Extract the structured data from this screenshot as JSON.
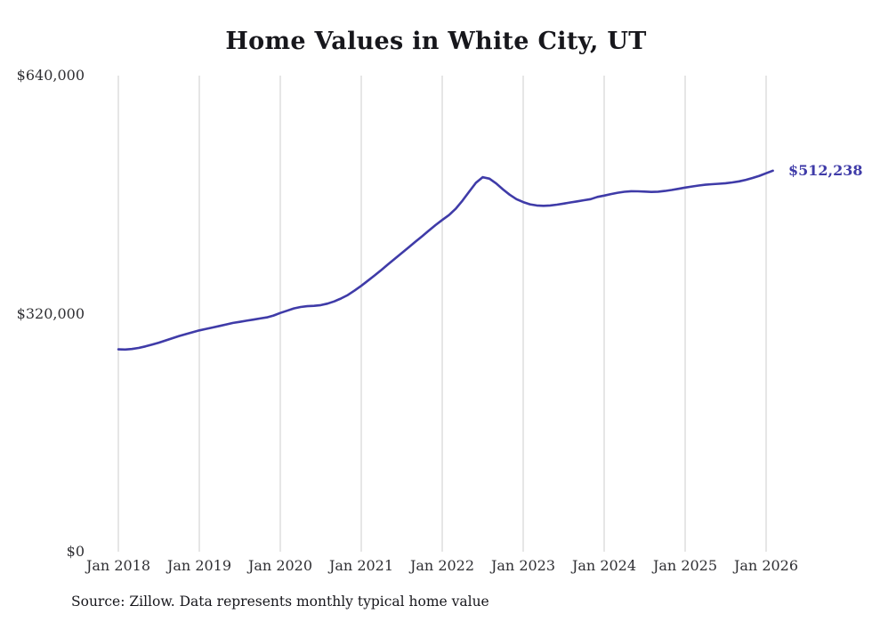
{
  "title": "Home Values in White City, UT",
  "source_note": "Source: Zillow. Data represents monthly typical home value",
  "end_label": "$512,238",
  "colors": {
    "line": "#3f3ba8",
    "grid": "#cccccc",
    "title_text": "#17171c",
    "axis_text": "#2f2f33"
  },
  "chart_data": {
    "type": "line",
    "title": "Home Values in White City, UT",
    "xlabel": "",
    "ylabel": "",
    "x_unit": "month",
    "x_start": "2018-01",
    "x_end": "2026-02",
    "x_tick_labels": [
      "Jan 2018",
      "Jan 2019",
      "Jan 2020",
      "Jan 2021",
      "Jan 2022",
      "Jan 2023",
      "Jan 2024",
      "Jan 2025",
      "Jan 2026"
    ],
    "y_ticks": [
      {
        "value": 0,
        "label": "$0"
      },
      {
        "value": 320000,
        "label": "$320,000"
      },
      {
        "value": 640000,
        "label": "$640,000"
      }
    ],
    "ylim": [
      0,
      640000
    ],
    "grid": "vertical-only",
    "legend": "none",
    "last_value": 512238,
    "last_value_label": "$512,238",
    "series": [
      {
        "name": "Typical home value",
        "values": [
          272000,
          271800,
          272500,
          274000,
          276000,
          278500,
          281000,
          284000,
          287000,
          290000,
          292500,
          295000,
          297500,
          299500,
          301500,
          303500,
          305500,
          307500,
          309000,
          310500,
          312000,
          313500,
          315000,
          317500,
          321000,
          324000,
          327000,
          329000,
          330000,
          330500,
          331500,
          333500,
          336500,
          340500,
          345000,
          351000,
          357500,
          364500,
          371500,
          379000,
          386500,
          394000,
          401500,
          409000,
          416500,
          424000,
          431500,
          439000,
          446000,
          452500,
          461000,
          472000,
          484000,
          496000,
          503500,
          501500,
          495000,
          487000,
          480000,
          474000,
          470000,
          467000,
          465500,
          465000,
          465500,
          466500,
          468000,
          469500,
          471000,
          472500,
          474000,
          477000,
          478800,
          480800,
          482600,
          483900,
          484600,
          484500,
          484100,
          483700,
          484000,
          485000,
          486300,
          487800,
          489500,
          491000,
          492300,
          493300,
          494100,
          494700,
          495400,
          496400,
          497900,
          499900,
          502400,
          505300,
          508800,
          512238
        ]
      }
    ]
  }
}
